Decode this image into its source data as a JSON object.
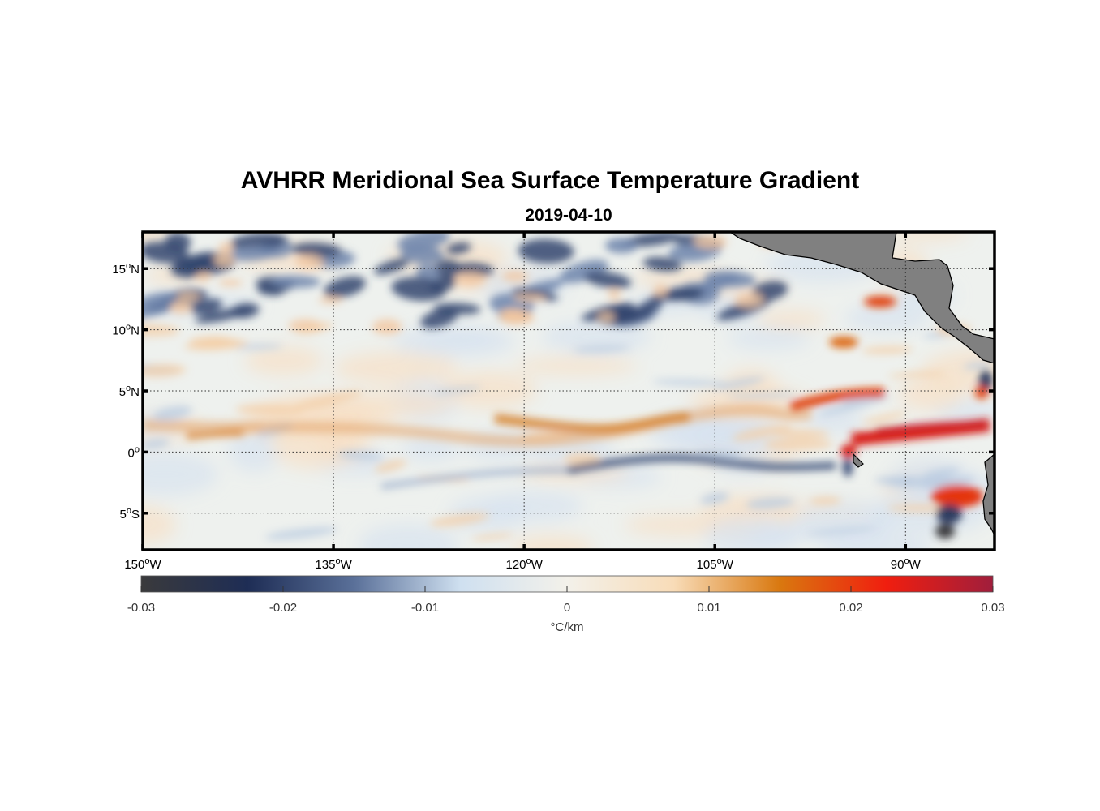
{
  "figure": {
    "title": "AVHRR Meridional Sea Surface Temperature Gradient",
    "subtitle": "2019-04-10"
  },
  "map": {
    "lon_range": [
      -150,
      -83
    ],
    "lat_range": [
      -8,
      18
    ],
    "lat_ticks": [
      {
        "value": 15,
        "num": "15",
        "hemi": "N"
      },
      {
        "value": 10,
        "num": "10",
        "hemi": "N"
      },
      {
        "value": 5,
        "num": "5",
        "hemi": "N"
      },
      {
        "value": 0,
        "num": "0",
        "hemi": ""
      },
      {
        "value": -5,
        "num": "5",
        "hemi": "S"
      }
    ],
    "lon_ticks": [
      {
        "value": -150,
        "num": "150",
        "hemi": "W"
      },
      {
        "value": -135,
        "num": "135",
        "hemi": "W"
      },
      {
        "value": -120,
        "num": "120",
        "hemi": "W"
      },
      {
        "value": -105,
        "num": "105",
        "hemi": "W"
      },
      {
        "value": -90,
        "num": "90",
        "hemi": "W"
      }
    ],
    "gridlines": true,
    "land_color": "#808080"
  },
  "colorbar": {
    "range": [
      -0.03,
      0.03
    ],
    "ticks": [
      {
        "value": -0.03,
        "label": "-0.03"
      },
      {
        "value": -0.02,
        "label": "-0.02"
      },
      {
        "value": -0.01,
        "label": "-0.01"
      },
      {
        "value": 0,
        "label": "0"
      },
      {
        "value": 0.01,
        "label": "0.01"
      },
      {
        "value": 0.02,
        "label": "0.02"
      },
      {
        "value": 0.03,
        "label": "0.03"
      }
    ],
    "label": "°C/km",
    "colors": [
      "#3a3a3c",
      "#1e2d55",
      "#5a7099",
      "#cfe0f0",
      "#f3f1ea",
      "#f8dcb8",
      "#d9780f",
      "#f01e0f",
      "#a01e3c"
    ]
  }
}
